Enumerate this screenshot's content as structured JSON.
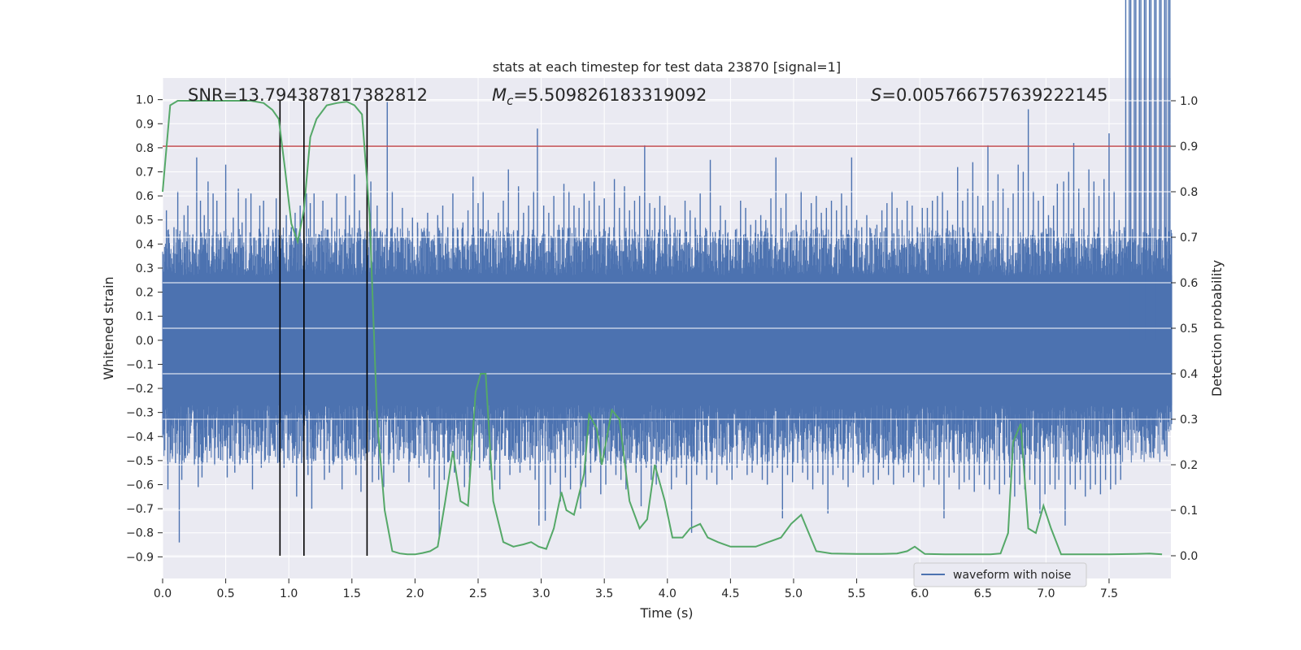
{
  "chart_data": {
    "type": "line",
    "title": "stats at each timestep for test data 23870 [signal=1]",
    "xlabel": "Time (s)",
    "ylabel_left": "Whitened strain",
    "ylabel_right": "Detection probability",
    "xlim": [
      0.0,
      7.99
    ],
    "ylim_left": [
      -0.99,
      1.09
    ],
    "ylim_right": [
      -0.05,
      1.05
    ],
    "x_ticks": [
      0.0,
      0.5,
      1.0,
      1.5,
      2.0,
      2.5,
      3.0,
      3.5,
      4.0,
      4.5,
      5.0,
      5.5,
      6.0,
      6.5,
      7.0,
      7.5
    ],
    "x_tick_labels": [
      "0.0",
      "0.5",
      "1.0",
      "1.5",
      "2.0",
      "2.5",
      "3.0",
      "3.5",
      "4.0",
      "4.5",
      "5.0",
      "5.5",
      "6.0",
      "6.5",
      "7.0",
      "7.5"
    ],
    "y_left_ticks": [
      1.0,
      0.9,
      0.8,
      0.7,
      0.6,
      0.5,
      0.4,
      0.3,
      0.2,
      0.1,
      0.0,
      -0.1,
      -0.2,
      -0.3,
      -0.4,
      -0.5,
      -0.6,
      -0.7,
      -0.8,
      -0.9
    ],
    "y_left_tick_labels": [
      "1.0",
      "0.9",
      "0.8",
      "0.7",
      "0.6",
      "0.5",
      "0.4",
      "0.3",
      "0.2",
      "0.1",
      "0.0",
      "−0.1",
      "−0.2",
      "−0.3",
      "−0.4",
      "−0.5",
      "−0.6",
      "−0.7",
      "−0.8",
      "−0.9"
    ],
    "y_right_ticks": [
      1.0,
      0.9,
      0.8,
      0.7,
      0.6,
      0.5,
      0.4,
      0.3,
      0.2,
      0.1,
      0.0
    ],
    "y_right_tick_labels": [
      "1.0",
      "0.9",
      "0.8",
      "0.7",
      "0.6",
      "0.5",
      "0.4",
      "0.3",
      "0.2",
      "0.1",
      "0.0"
    ],
    "grid": true,
    "legend": {
      "placement": "lower center-right",
      "entries": [
        {
          "label": "waveform with noise",
          "color": "#4c72b0"
        }
      ]
    },
    "annotations": {
      "snr": "SNR=13.794387817382812",
      "mc_symbol": "M",
      "mc_sub": "c",
      "mc_value": "=5.509826183319092",
      "s_symbol": "S",
      "s_value": "=0.005766757639222145"
    },
    "threshold": {
      "axis": "right",
      "value": 0.9,
      "color": "#c44e52"
    },
    "vlines": [
      0.93,
      1.12,
      1.62
    ],
    "waveform": {
      "name": "waveform with noise",
      "color": "#4c72b0",
      "duration": 8.0,
      "core_band": [
        -0.27,
        0.27
      ],
      "spike_times": [
        0.03,
        0.05,
        0.09,
        0.12,
        0.14,
        0.17,
        0.2,
        0.24,
        0.27,
        0.3,
        0.33,
        0.36,
        0.4,
        0.43,
        0.46,
        0.5,
        0.53,
        0.56,
        0.6,
        0.63,
        0.66,
        0.7,
        0.73,
        0.77,
        0.8,
        0.84,
        0.87,
        0.9,
        0.95,
        0.98,
        1.02,
        1.05,
        1.09,
        1.14,
        1.17,
        1.2,
        1.24,
        1.27,
        1.31,
        1.34,
        1.38,
        1.41,
        1.45,
        1.48,
        1.52,
        1.56,
        1.6,
        1.65,
        1.7,
        1.74,
        1.78,
        1.82,
        1.86,
        1.9,
        1.94,
        1.98,
        2.02,
        2.06,
        2.1,
        2.14,
        2.18,
        2.22,
        2.26,
        2.3,
        2.34,
        2.38,
        2.42,
        2.46,
        2.5,
        2.54,
        2.58,
        2.62,
        2.66,
        2.7,
        2.74,
        2.78,
        2.82,
        2.86,
        2.9,
        2.94,
        2.97,
        3.02,
        3.06,
        3.1,
        3.14,
        3.18,
        3.22,
        3.26,
        3.3,
        3.34,
        3.38,
        3.42,
        3.46,
        3.5,
        3.54,
        3.58,
        3.62,
        3.66,
        3.7,
        3.74,
        3.78,
        3.82,
        3.86,
        3.9,
        3.94,
        3.98,
        4.02,
        4.06,
        4.1,
        4.14,
        4.18,
        4.22,
        4.26,
        4.3,
        4.34,
        4.38,
        4.42,
        4.46,
        4.5,
        4.54,
        4.58,
        4.62,
        4.66,
        4.7,
        4.74,
        4.78,
        4.82,
        4.86,
        4.9,
        4.94,
        4.98,
        5.02,
        5.06,
        5.1,
        5.14,
        5.18,
        5.22,
        5.26,
        5.3,
        5.34,
        5.38,
        5.42,
        5.46,
        5.5,
        5.54,
        5.58,
        5.62,
        5.66,
        5.7,
        5.74,
        5.78,
        5.82,
        5.86,
        5.9,
        5.94,
        5.98,
        6.02,
        6.06,
        6.1,
        6.14,
        6.18,
        6.22,
        6.26,
        6.3,
        6.34,
        6.38,
        6.42,
        6.46,
        6.5,
        6.54,
        6.58,
        6.62,
        6.66,
        6.7,
        6.74,
        6.78,
        6.82,
        6.86,
        6.9,
        6.94,
        6.98,
        7.02,
        7.06,
        7.09,
        7.14,
        7.18,
        7.22,
        7.26,
        7.3,
        7.34,
        7.38,
        7.42,
        7.46,
        7.5,
        7.54,
        7.58,
        7.62,
        7.66,
        7.7,
        7.74,
        7.78,
        7.82,
        7.86,
        7.9,
        7.94,
        7.97
      ],
      "spike_max": [
        0.54,
        0.44,
        0.47,
        0.62,
        0.41,
        0.52,
        0.56,
        0.44,
        0.76,
        0.58,
        0.52,
        0.66,
        0.61,
        0.58,
        0.44,
        0.73,
        0.41,
        0.51,
        0.63,
        0.49,
        0.59,
        0.61,
        0.43,
        0.56,
        0.58,
        0.47,
        0.41,
        0.59,
        0.42,
        0.52,
        0.47,
        0.53,
        0.56,
        0.61,
        0.57,
        0.61,
        0.44,
        0.58,
        0.46,
        0.51,
        0.61,
        0.43,
        0.6,
        0.52,
        0.69,
        0.54,
        0.4,
        0.66,
        0.56,
        0.44,
        0.99,
        0.62,
        0.47,
        0.55,
        0.43,
        0.51,
        0.49,
        0.45,
        0.53,
        0.42,
        0.52,
        0.56,
        0.47,
        0.61,
        0.46,
        0.49,
        0.54,
        0.68,
        0.57,
        0.62,
        0.5,
        0.46,
        0.53,
        0.58,
        0.71,
        0.45,
        0.64,
        0.53,
        0.56,
        0.62,
        0.88,
        0.56,
        0.53,
        0.6,
        0.48,
        0.65,
        0.62,
        0.56,
        0.55,
        0.61,
        0.58,
        0.66,
        0.56,
        0.59,
        0.47,
        0.67,
        0.55,
        0.64,
        0.54,
        0.58,
        0.6,
        0.81,
        0.57,
        0.55,
        0.6,
        0.56,
        0.52,
        0.51,
        0.46,
        0.58,
        0.54,
        0.51,
        0.61,
        0.42,
        0.75,
        0.45,
        0.56,
        0.5,
        0.42,
        0.46,
        0.58,
        0.55,
        0.48,
        0.5,
        0.52,
        0.5,
        0.59,
        0.76,
        0.55,
        0.61,
        0.45,
        0.48,
        0.62,
        0.5,
        0.57,
        0.6,
        0.53,
        0.55,
        0.58,
        0.54,
        0.61,
        0.56,
        0.76,
        0.5,
        0.47,
        0.52,
        0.43,
        0.48,
        0.54,
        0.57,
        0.62,
        0.55,
        0.5,
        0.58,
        0.56,
        0.47,
        0.55,
        0.55,
        0.58,
        0.6,
        0.62,
        0.54,
        0.48,
        0.72,
        0.58,
        0.63,
        0.74,
        0.6,
        0.56,
        0.81,
        0.58,
        0.69,
        0.63,
        0.55,
        0.61,
        0.73,
        0.7,
        0.96,
        0.62,
        0.58,
        0.6,
        0.52,
        0.56,
        0.65,
        0.66,
        0.7,
        0.82,
        0.63,
        0.55,
        0.71,
        0.66,
        0.6,
        0.67,
        0.86,
        0.62,
        0.5,
        0.47
      ],
      "spike_min": [
        -0.62,
        -0.47,
        -0.51,
        -0.84,
        -0.58,
        -0.49,
        -0.45,
        -0.52,
        -0.61,
        -0.57,
        -0.43,
        -0.46,
        -0.52,
        -0.49,
        -0.43,
        -0.57,
        -0.48,
        -0.55,
        -0.52,
        -0.46,
        -0.51,
        -0.62,
        -0.47,
        -0.53,
        -0.49,
        -0.48,
        -0.46,
        -0.51,
        -0.53,
        -0.49,
        -0.51,
        -0.65,
        -0.51,
        -0.56,
        -0.7,
        -0.5,
        -0.46,
        -0.58,
        -0.55,
        -0.52,
        -0.49,
        -0.62,
        -0.5,
        -0.48,
        -0.56,
        -0.63,
        -0.47,
        -0.59,
        -0.58,
        -0.61,
        -0.52,
        -0.55,
        -0.5,
        -0.47,
        -0.59,
        -0.49,
        -0.53,
        -0.51,
        -0.57,
        -0.62,
        -0.82,
        -0.58,
        -0.5,
        -0.55,
        -0.52,
        -0.61,
        -0.57,
        -0.5,
        -0.53,
        -0.49,
        -0.54,
        -0.58,
        -0.62,
        -0.48,
        -0.56,
        -0.51,
        -0.55,
        -0.5,
        -0.54,
        -0.58,
        -0.77,
        -0.75,
        -0.6,
        -0.55,
        -0.67,
        -0.57,
        -0.62,
        -0.53,
        -0.7,
        -0.61,
        -0.55,
        -0.5,
        -0.64,
        -0.6,
        -0.52,
        -0.56,
        -0.58,
        -0.62,
        -0.51,
        -0.55,
        -0.69,
        -0.53,
        -0.58,
        -0.6,
        -0.55,
        -0.52,
        -0.62,
        -0.57,
        -0.53,
        -0.6,
        -0.8,
        -0.56,
        -0.52,
        -0.58,
        -0.55,
        -0.6,
        -0.52,
        -0.54,
        -0.58,
        -0.53,
        -0.5,
        -0.56,
        -0.55,
        -0.52,
        -0.58,
        -0.6,
        -0.55,
        -0.53,
        -0.74,
        -0.56,
        -0.59,
        -0.51,
        -0.55,
        -0.58,
        -0.62,
        -0.55,
        -0.6,
        -0.72,
        -0.56,
        -0.53,
        -0.58,
        -0.61,
        -0.55,
        -0.52,
        -0.57,
        -0.55,
        -0.6,
        -0.58,
        -0.53,
        -0.56,
        -0.6,
        -0.52,
        -0.57,
        -0.55,
        -0.59,
        -0.56,
        -0.61,
        -0.54,
        -0.58,
        -0.6,
        -0.74,
        -0.57,
        -0.55,
        -0.62,
        -0.59,
        -0.58,
        -0.63,
        -0.56,
        -0.6,
        -0.62,
        -0.58,
        -0.64,
        -0.6,
        -0.57,
        -0.65,
        -0.6,
        -0.62,
        -0.58,
        -0.6,
        -0.72,
        -0.64,
        -0.6,
        -0.62,
        -0.58,
        -0.77,
        -0.6,
        -0.62,
        -0.58,
        -0.65,
        -0.62,
        -0.6,
        -0.64,
        -0.58,
        -0.62,
        -0.6,
        -0.58
      ]
    },
    "probability": {
      "color": "#55a868",
      "x": [
        0.0,
        0.06,
        0.12,
        0.2,
        0.3,
        0.4,
        0.5,
        0.6,
        0.7,
        0.8,
        0.87,
        0.92,
        0.97,
        1.02,
        1.07,
        1.12,
        1.17,
        1.22,
        1.3,
        1.38,
        1.46,
        1.52,
        1.58,
        1.64,
        1.7,
        1.76,
        1.82,
        1.88,
        1.94,
        2.0,
        2.06,
        2.12,
        2.18,
        2.24,
        2.3,
        2.36,
        2.42,
        2.48,
        2.52,
        2.56,
        2.62,
        2.7,
        2.78,
        2.86,
        2.92,
        2.98,
        3.04,
        3.1,
        3.16,
        3.2,
        3.26,
        3.34,
        3.38,
        3.44,
        3.48,
        3.56,
        3.62,
        3.7,
        3.78,
        3.84,
        3.9,
        3.98,
        4.04,
        4.12,
        4.18,
        4.26,
        4.32,
        4.4,
        4.5,
        4.6,
        4.7,
        4.8,
        4.9,
        4.98,
        5.06,
        5.12,
        5.18,
        5.3,
        5.5,
        5.7,
        5.82,
        5.9,
        5.96,
        6.04,
        6.2,
        6.4,
        6.56,
        6.64,
        6.7,
        6.74,
        6.8,
        6.86,
        6.92,
        6.98,
        7.04,
        7.12,
        7.3,
        7.5,
        7.7,
        7.82,
        7.92
      ],
      "y": [
        0.8,
        0.99,
        1.0,
        1.0,
        1.0,
        1.0,
        1.0,
        1.0,
        1.0,
        0.995,
        0.98,
        0.96,
        0.85,
        0.73,
        0.69,
        0.76,
        0.92,
        0.96,
        0.99,
        0.995,
        0.998,
        0.99,
        0.97,
        0.75,
        0.3,
        0.1,
        0.01,
        0.005,
        0.003,
        0.003,
        0.006,
        0.01,
        0.02,
        0.12,
        0.23,
        0.12,
        0.11,
        0.36,
        0.4,
        0.4,
        0.12,
        0.03,
        0.02,
        0.025,
        0.03,
        0.02,
        0.015,
        0.06,
        0.14,
        0.1,
        0.09,
        0.18,
        0.31,
        0.28,
        0.2,
        0.32,
        0.3,
        0.12,
        0.06,
        0.08,
        0.2,
        0.12,
        0.04,
        0.04,
        0.06,
        0.07,
        0.04,
        0.03,
        0.02,
        0.02,
        0.02,
        0.03,
        0.04,
        0.07,
        0.09,
        0.05,
        0.01,
        0.005,
        0.004,
        0.004,
        0.005,
        0.01,
        0.02,
        0.004,
        0.003,
        0.003,
        0.003,
        0.005,
        0.05,
        0.25,
        0.29,
        0.06,
        0.05,
        0.11,
        0.06,
        0.003,
        0.003,
        0.003,
        0.004,
        0.005,
        0.003
      ]
    }
  }
}
